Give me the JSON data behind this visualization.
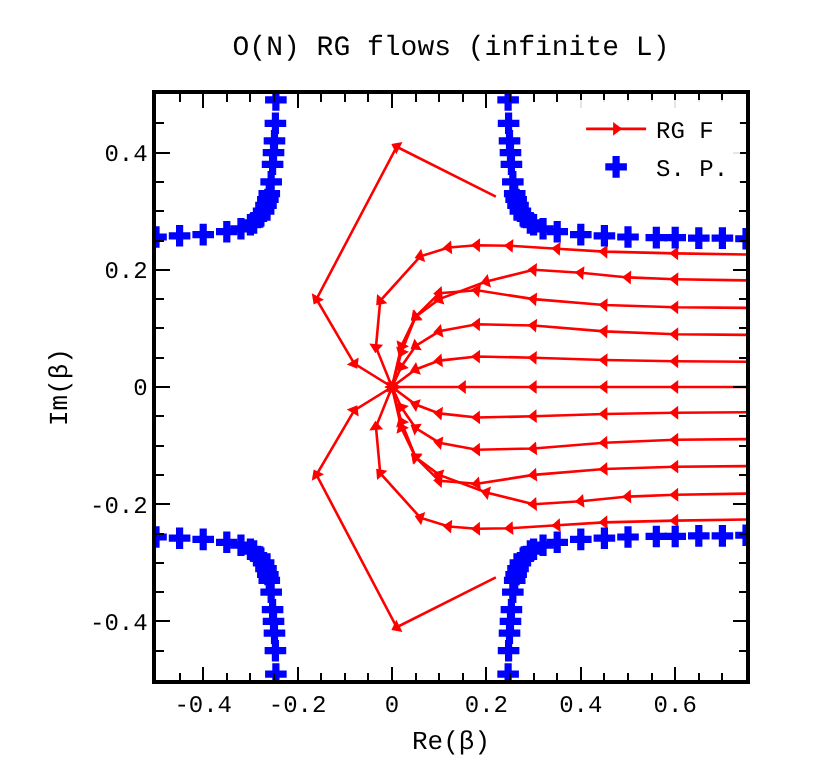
{
  "chart_data": {
    "type": "line",
    "title": "O(N) RG flows (infinite L)",
    "xlabel": "Re(β)",
    "ylabel": "Im(β)",
    "xlim": [
      -0.5,
      0.75
    ],
    "ylim": [
      -0.5,
      0.5
    ],
    "xticks": [
      -0.4,
      -0.2,
      0,
      0.2,
      0.4,
      0.6
    ],
    "yticks": [
      -0.4,
      -0.2,
      0,
      0.2,
      0.4
    ],
    "legend": "top right",
    "series": [
      {
        "name": "RG F",
        "color": "#ff0000",
        "marker": "triangle",
        "line_style": "solid",
        "x": [
          0.22,
          0.01,
          -0.16,
          -0.08,
          0,
          null,
          0.75,
          0.6,
          0.45,
          0.35,
          0.25,
          0.18,
          0.12,
          0.06,
          -0.025,
          -0.034,
          0,
          null,
          0.75,
          0.6,
          0.5,
          0.4,
          0.3,
          0.2,
          0.1,
          0.05,
          0.02,
          0,
          null,
          0.75,
          0.6,
          0.45,
          0.3,
          0.18,
          0.1,
          0.05,
          0.02,
          0,
          null,
          0.75,
          0.6,
          0.45,
          0.3,
          0.18,
          0.1,
          0.05,
          0.02,
          0,
          null,
          0.75,
          0.6,
          0.45,
          0.3,
          0.18,
          0.1,
          0.05,
          0,
          null,
          0.75,
          0.6,
          0.45,
          0.3,
          0.15,
          0,
          null,
          0.75,
          0.6,
          0.45,
          0.3,
          0.18,
          0.1,
          0.05,
          0,
          null,
          0.75,
          0.6,
          0.45,
          0.3,
          0.18,
          0.1,
          0.05,
          0.02,
          0,
          null,
          0.75,
          0.6,
          0.45,
          0.3,
          0.18,
          0.1,
          0.05,
          0.02,
          0,
          null,
          0.75,
          0.6,
          0.5,
          0.4,
          0.3,
          0.2,
          0.1,
          0.05,
          0.02,
          0,
          null,
          0.75,
          0.6,
          0.45,
          0.35,
          0.25,
          0.18,
          0.12,
          0.06,
          -0.025,
          -0.034,
          0,
          null,
          0.22,
          0.01,
          -0.16,
          -0.08,
          0
        ],
        "values": [
          0.325,
          0.41,
          0.15,
          0.04,
          0,
          null,
          0.226,
          0.228,
          0.231,
          0.236,
          0.241,
          0.242,
          0.238,
          0.223,
          0.147,
          0.068,
          0,
          null,
          0.182,
          0.184,
          0.187,
          0.195,
          0.2,
          0.18,
          0.15,
          0.12,
          0.07,
          0,
          null,
          0.135,
          0.136,
          0.14,
          0.15,
          0.165,
          0.16,
          0.12,
          0.06,
          0,
          null,
          0.089,
          0.09,
          0.095,
          0.105,
          0.107,
          0.095,
          0.07,
          0.035,
          0,
          null,
          0.043,
          0.044,
          0.046,
          0.05,
          0.052,
          0.045,
          0.03,
          0,
          null,
          0,
          0,
          0,
          0,
          0,
          0,
          null,
          -0.043,
          -0.044,
          -0.046,
          -0.05,
          -0.052,
          -0.045,
          -0.03,
          0,
          null,
          -0.089,
          -0.09,
          -0.095,
          -0.105,
          -0.107,
          -0.095,
          -0.07,
          -0.035,
          0,
          null,
          -0.135,
          -0.136,
          -0.14,
          -0.15,
          -0.165,
          -0.16,
          -0.12,
          -0.06,
          0,
          null,
          -0.182,
          -0.184,
          -0.187,
          -0.195,
          -0.2,
          -0.18,
          -0.15,
          -0.12,
          -0.07,
          0,
          null,
          -0.226,
          -0.228,
          -0.231,
          -0.236,
          -0.241,
          -0.242,
          -0.238,
          -0.223,
          -0.147,
          -0.068,
          0,
          null,
          -0.325,
          -0.41,
          -0.15,
          -0.04,
          0
        ]
      },
      {
        "name": "S. P.",
        "type": "scatter",
        "color": "#0000ff",
        "marker": "cross",
        "x": [
          0.246,
          0.247,
          0.249,
          0.251,
          0.253,
          0.256,
          0.26,
          0.263,
          0.267,
          0.272,
          0.28,
          0.293,
          0.3,
          0.32,
          0.35,
          0.4,
          0.45,
          0.5,
          0.56,
          0.6,
          0.65,
          0.7,
          0.75,
          -0.246,
          -0.247,
          -0.249,
          -0.251,
          -0.253,
          -0.256,
          -0.26,
          -0.263,
          -0.267,
          -0.272,
          -0.28,
          -0.293,
          -0.3,
          -0.32,
          -0.35,
          -0.4,
          -0.45,
          -0.5,
          0.246,
          0.247,
          0.249,
          0.251,
          0.253,
          0.256,
          0.26,
          0.263,
          0.267,
          0.272,
          0.28,
          0.293,
          0.3,
          0.32,
          0.35,
          0.4,
          0.45,
          0.5,
          0.56,
          0.6,
          0.65,
          0.7,
          0.75,
          -0.246,
          -0.247,
          -0.249,
          -0.251,
          -0.253,
          -0.256,
          -0.26,
          -0.263,
          -0.267,
          -0.272,
          -0.28,
          -0.293,
          -0.3,
          -0.32,
          -0.35,
          -0.4,
          -0.45,
          -0.5
        ],
        "values": [
          0.49,
          0.45,
          0.42,
          0.4,
          0.38,
          0.35,
          0.33,
          0.32,
          0.31,
          0.3,
          0.29,
          0.28,
          0.277,
          0.27,
          0.265,
          0.26,
          0.258,
          0.256,
          0.255,
          0.255,
          0.254,
          0.254,
          0.253,
          0.49,
          0.45,
          0.42,
          0.4,
          0.38,
          0.35,
          0.33,
          0.32,
          0.31,
          0.3,
          0.29,
          0.28,
          0.277,
          0.27,
          0.265,
          0.26,
          0.258,
          0.256,
          -0.49,
          -0.45,
          -0.42,
          -0.4,
          -0.38,
          -0.35,
          -0.33,
          -0.32,
          -0.31,
          -0.3,
          -0.29,
          -0.28,
          -0.277,
          -0.27,
          -0.265,
          -0.26,
          -0.258,
          -0.256,
          -0.255,
          -0.255,
          -0.254,
          -0.254,
          -0.253,
          -0.49,
          -0.45,
          -0.42,
          -0.4,
          -0.38,
          -0.35,
          -0.33,
          -0.32,
          -0.31,
          -0.3,
          -0.29,
          -0.28,
          -0.277,
          -0.27,
          -0.265,
          -0.26,
          -0.258,
          -0.256
        ]
      }
    ]
  }
}
